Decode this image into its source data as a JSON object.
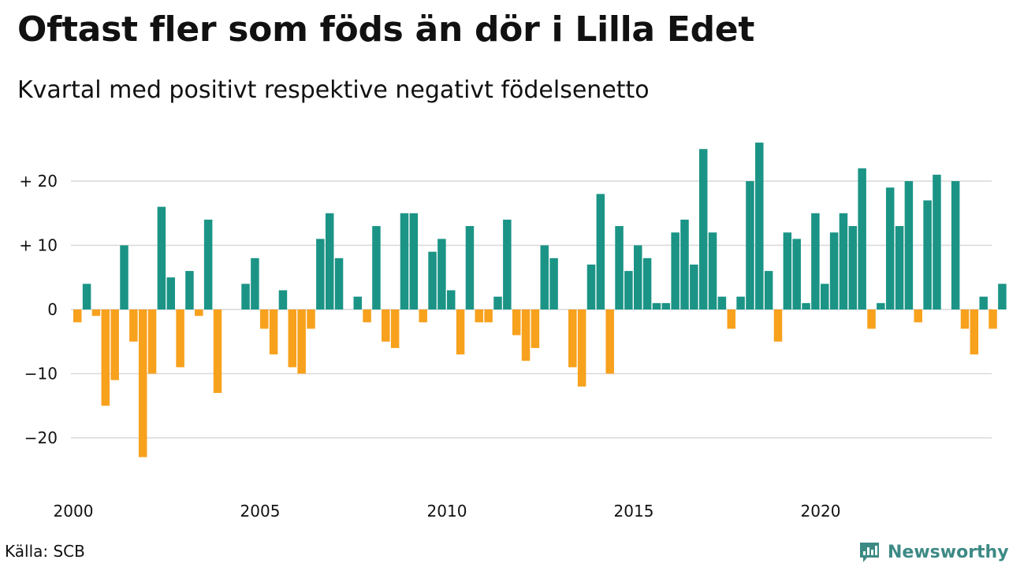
{
  "title": "Oftast fler som föds än dör i Lilla Edet",
  "subtitle": "Kvartal med positivt respektive negativt födelsenetto",
  "source": "Källa: SCB",
  "logo_text": "Newsworthy",
  "colors": {
    "positive": "#1b9486",
    "negative": "#f7a11d",
    "gridline": "#d9d9d9",
    "brand": "#3d8a85"
  },
  "chart_data": {
    "type": "bar",
    "x_start": "2000 Q1",
    "x_ticks": [
      "2000",
      "2005",
      "2010",
      "2015",
      "2020"
    ],
    "y_ticks": [
      20,
      10,
      0,
      -10,
      -20
    ],
    "y_tick_labels": [
      "+ 20",
      "+ 10",
      "0",
      "−10",
      "−20"
    ],
    "ylim": [
      -25,
      28
    ],
    "grid": true,
    "values": [
      -2,
      4,
      -1,
      -15,
      -11,
      10,
      -5,
      -23,
      -10,
      16,
      5,
      -9,
      6,
      -1,
      14,
      -13,
      0,
      0,
      4,
      8,
      -3,
      -7,
      3,
      -9,
      -10,
      -3,
      11,
      15,
      8,
      0,
      2,
      -2,
      13,
      -5,
      -6,
      15,
      15,
      -2,
      9,
      11,
      3,
      -7,
      13,
      -2,
      -2,
      2,
      14,
      -4,
      -8,
      -6,
      10,
      8,
      0,
      -9,
      -12,
      7,
      18,
      -10,
      13,
      6,
      10,
      8,
      1,
      1,
      12,
      14,
      7,
      25,
      12,
      2,
      -3,
      2,
      20,
      26,
      6,
      -5,
      12,
      11,
      1,
      15,
      4,
      12,
      15,
      13,
      22,
      -3,
      1,
      19,
      13,
      20,
      -2,
      17,
      21,
      0,
      20,
      -3,
      -7,
      2,
      -3,
      4
    ]
  }
}
